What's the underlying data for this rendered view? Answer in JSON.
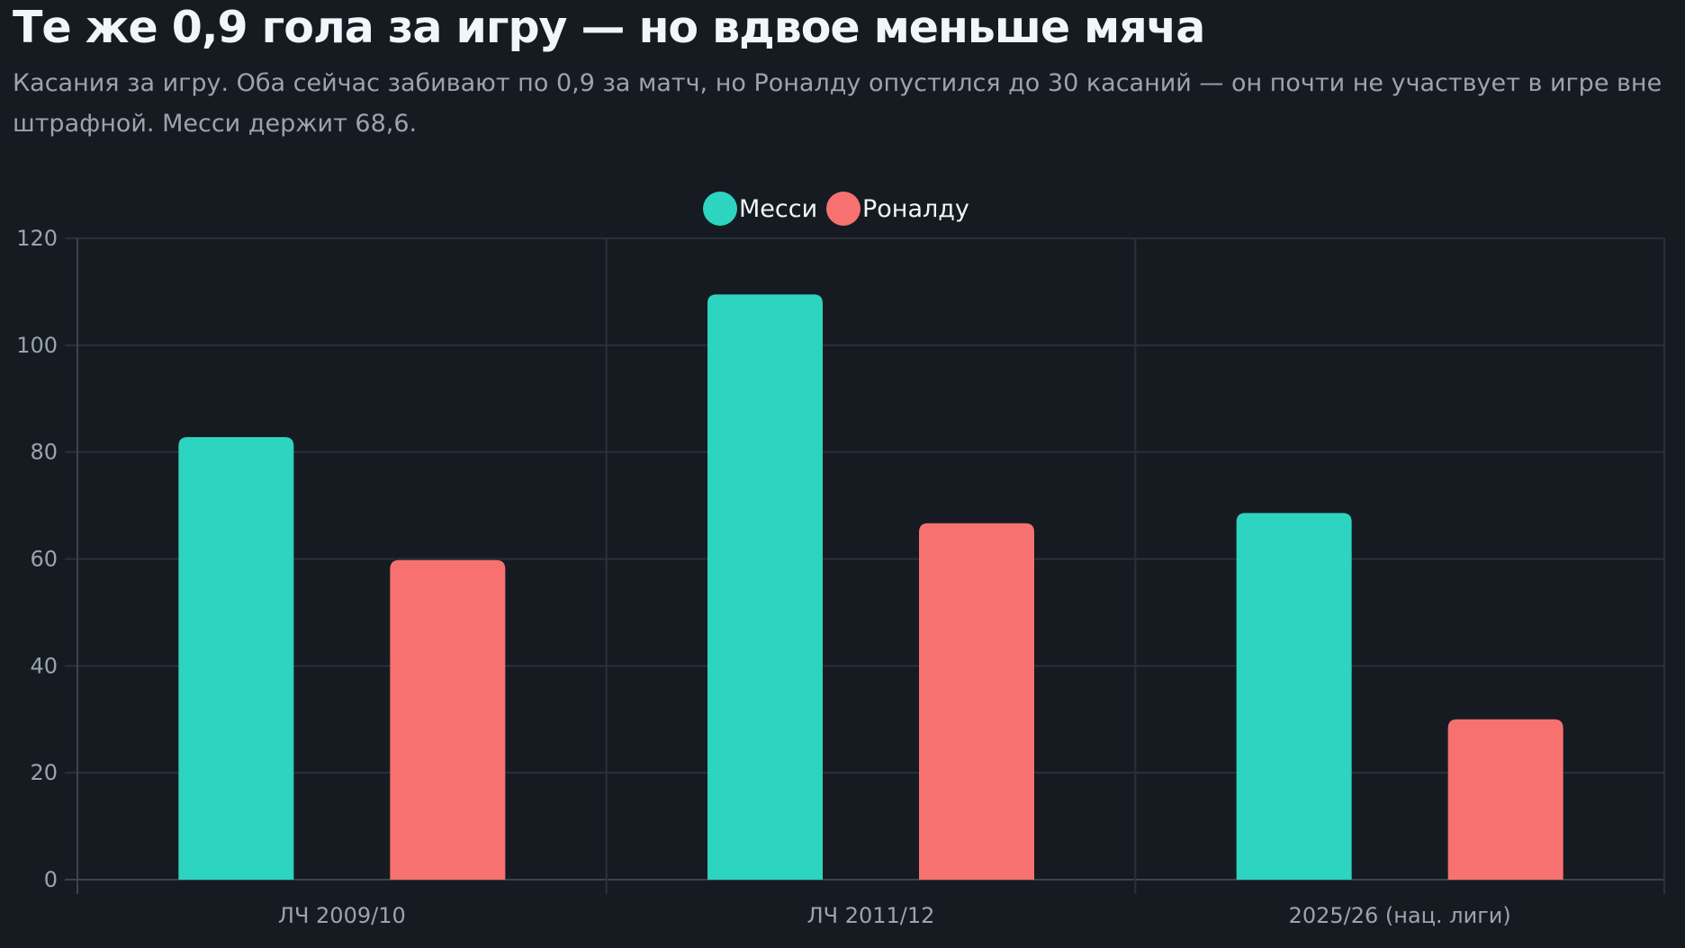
{
  "header": {
    "title": "Те же 0,9 гола за игру — но вдвое меньше мяча",
    "subtitle": "Касания за игру. Оба сейчас забивают по 0,9 за матч, но Роналду опустился до 30 касаний — он почти не участвует в игре вне штрафной. Месси держит 68,6."
  },
  "chart_data": {
    "type": "bar",
    "categories": [
      "ЛЧ 2009/10",
      "ЛЧ 2011/12",
      "2025/26 (нац. лиги)"
    ],
    "series": [
      {
        "name": "Месси",
        "color": "#2dd4bf",
        "values": [
          82.8,
          109.5,
          68.6
        ]
      },
      {
        "name": "Роналду",
        "color": "#f87171",
        "values": [
          59.8,
          66.7,
          30.0
        ]
      }
    ],
    "yticks": [
      0,
      20,
      40,
      60,
      80,
      100,
      120
    ],
    "ylim": [
      0,
      120
    ],
    "xlabel": "",
    "ylabel": "",
    "grid": true,
    "legend_position": "top-center"
  }
}
